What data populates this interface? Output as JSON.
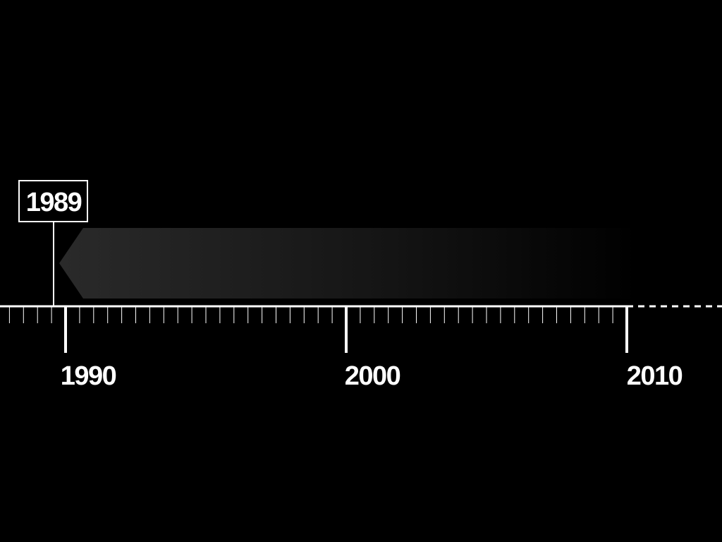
{
  "timeline": {
    "start_year": 1986,
    "end_year": 2010,
    "continues_after": true,
    "major_labels": [
      "1990",
      "2000",
      "2010"
    ],
    "marker": {
      "year_label": "1989",
      "year_value": 1989
    },
    "period_band": {
      "from_year": 1990,
      "to_year": 2010,
      "fades_out": true
    }
  },
  "colors": {
    "background": "#000000",
    "axis": "#ffffff",
    "band_start": "#2a2a2a",
    "band_end": "#000000"
  }
}
